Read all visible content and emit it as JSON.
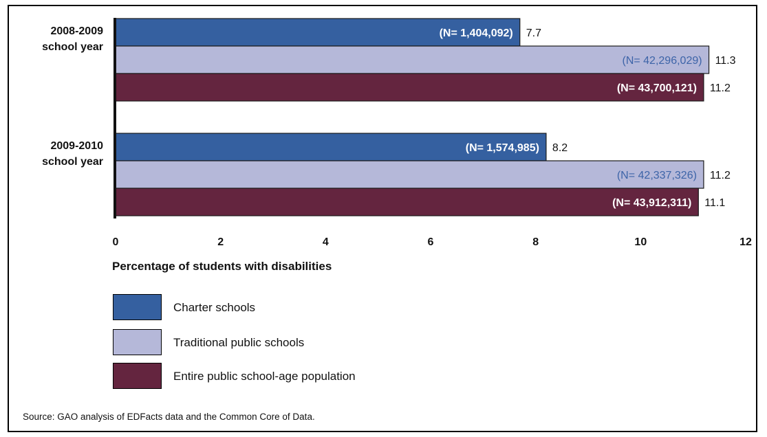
{
  "chart_data": {
    "type": "bar",
    "orientation": "horizontal",
    "categories": [
      [
        "2008-2009",
        "school year"
      ],
      [
        "2009-2010",
        "school year"
      ]
    ],
    "series": [
      {
        "name": "Charter schools",
        "color": "#3560a0",
        "values": [
          7.7,
          8.2
        ],
        "value_labels": [
          "7.7",
          "8.2"
        ],
        "n_labels": [
          "(N= 1,404,092)",
          "(N= 1,574,985)"
        ],
        "n_label_color": "#ffffff"
      },
      {
        "name": "Traditional public schools",
        "color": "#b5b8d9",
        "values": [
          11.3,
          11.2
        ],
        "value_labels": [
          "11.3",
          "11.2"
        ],
        "n_labels": [
          "(N= 42,296,029)",
          "(N= 42,337,326)"
        ],
        "n_label_color": "#3d64a8"
      },
      {
        "name": "Entire public school-age population",
        "color": "#64253f",
        "values": [
          11.2,
          11.1
        ],
        "value_labels": [
          "11.2",
          "11.1"
        ],
        "n_labels": [
          "(N= 43,700,121)",
          "(N= 43,912,311)"
        ],
        "n_label_color": "#ffffff"
      }
    ],
    "xlabel": "Percentage of students with disabilities",
    "xlim": [
      0,
      12
    ],
    "xticks": [
      "0",
      "2",
      "4",
      "6",
      "8",
      "10",
      "12"
    ],
    "grid": false,
    "legend_position": "bottom-left"
  },
  "source": "Source: GAO analysis of EDFacts data and the Common Core of Data."
}
